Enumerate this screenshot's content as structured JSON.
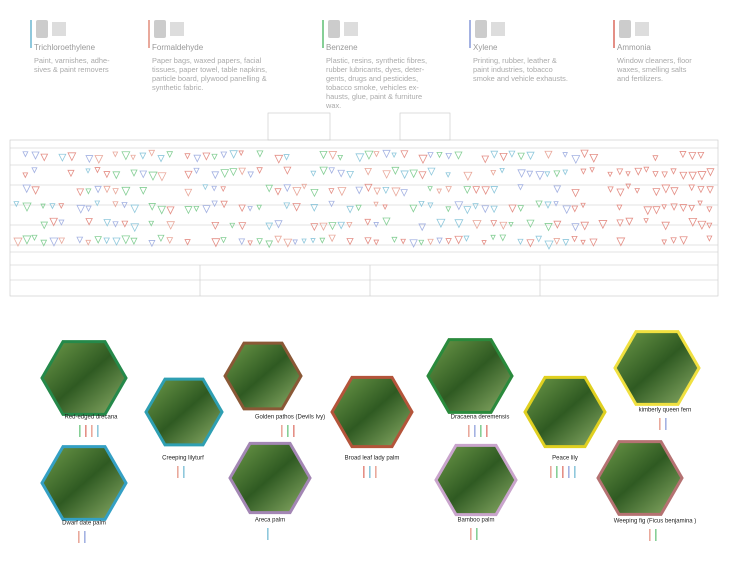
{
  "pollutants": [
    {
      "name": "Trichloroethylene",
      "color": "#8fc8dc",
      "lines": [
        "Paint, varnishes, adhe-",
        "sives & paint removers"
      ]
    },
    {
      "name": "Formaldehyde",
      "color": "#e9a99c",
      "lines": [
        "Paper bags, waxed papers, facial",
        "tissues, paper towel, table napkins,",
        "particle board, plywood panelling &",
        "synthetic fabric."
      ]
    },
    {
      "name": "Benzene",
      "color": "#86cf96",
      "lines": [
        "Plastic, resins, synthetic fibres,",
        "rubber lubricants, dyes, deter-",
        "gents, drugs and pesticides,",
        "tobacco smoke, vehicles ex-",
        "hausts, glue, paint &  furniture",
        "wax."
      ]
    },
    {
      "name": "Xylene",
      "color": "#a4b2e2",
      "lines": [
        "Printing, rubber, leather &",
        "paint industries, tobacco",
        "smoke and vehicle exhausts."
      ]
    },
    {
      "name": "Ammonia",
      "color": "#e48f86",
      "lines": [
        "Window cleaners, floor",
        "waxes, smelling salts",
        "and fertilizers."
      ]
    }
  ],
  "plants": [
    {
      "name": "Red-edged drecana",
      "border": "#25894a",
      "bars": [
        "#86cf96",
        "#e48f86",
        "#e9a99c",
        "#8fc8dc"
      ]
    },
    {
      "name": "Creeping lilyturf",
      "border": "#2e9fb2",
      "bars": [
        "#e9a99c",
        "#8fc8dc"
      ]
    },
    {
      "name": "Golden pathos (Devils Ivy)",
      "border": "#8a5836",
      "bars": [
        "#e9a99c",
        "#86cf96",
        "#e48f86"
      ]
    },
    {
      "name": "Broad leaf lady palm",
      "border": "#b4543a",
      "bars": [
        "#e48f86",
        "#8fc8dc",
        "#e9a99c"
      ]
    },
    {
      "name": "Dracaena deremensis",
      "border": "#2a8a3c",
      "bars": [
        "#e9a99c",
        "#a4b2e2",
        "#86cf96",
        "#e48f86"
      ]
    },
    {
      "name": "kimberly queen fern",
      "border": "#f0e040",
      "bars": [
        "#e9a99c",
        "#a4b2e2"
      ]
    },
    {
      "name": "Peace lily",
      "border": "#e0d020",
      "bars": [
        "#e9a99c",
        "#86cf96",
        "#e48f86",
        "#a4b2e2",
        "#8fc8dc"
      ]
    },
    {
      "name": "Dwarf date palm",
      "border": "#34a0c4",
      "bars": [
        "#e9a99c",
        "#a4b2e2"
      ]
    },
    {
      "name": "Areca palm",
      "border": "#a386b4",
      "bars": [
        "#8fc8dc"
      ]
    },
    {
      "name": "Bamboo palm",
      "border": "#c9a4cc",
      "bars": [
        "#e9a99c",
        "#86cf96"
      ]
    },
    {
      "name": "Weeping fig (Ficus benjamina )",
      "border": "#b57272",
      "bars": [
        "#e9a99c",
        "#86cf96"
      ]
    }
  ]
}
